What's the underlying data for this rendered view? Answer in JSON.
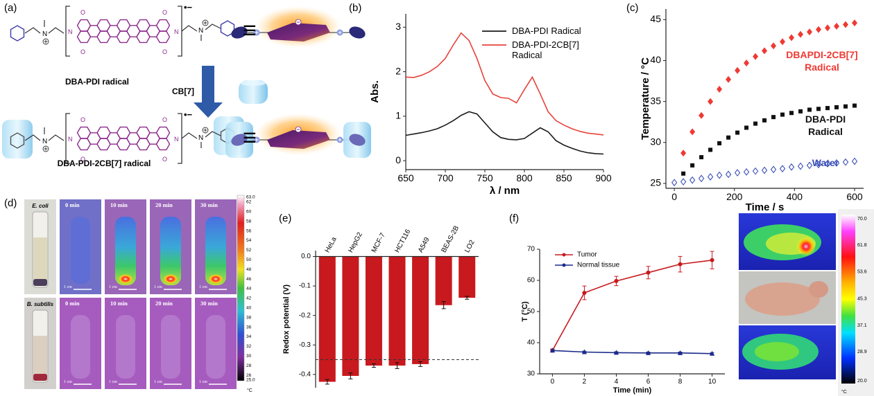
{
  "panel_labels": [
    "(a)",
    "(b)",
    "(c)",
    "(d)",
    "(e)",
    "(f)"
  ],
  "panel_a": {
    "radical_mark": "•−",
    "equivalence": "≡",
    "atom_O": "O",
    "atom_N": "N",
    "top_label": "DBA-PDI radical",
    "host_label": "CB[7]",
    "bottom_label": "DBA-PDI-2CB[7] radical"
  },
  "panel_d": {
    "rows": [
      {
        "strain": "E. coli",
        "times": [
          "0 min",
          "10 min",
          "20 min",
          "30 min"
        ]
      },
      {
        "strain": "B. subtilis",
        "times": [
          "0 min",
          "10 min",
          "20 min",
          "30 min"
        ]
      }
    ],
    "scale_bar": "1 cm",
    "colorbar": {
      "labels": [
        "63.0",
        "62",
        "60",
        "58",
        "56",
        "54",
        "52",
        "50",
        "48",
        "46",
        "44",
        "42",
        "40",
        "38",
        "36",
        "34",
        "32",
        "30",
        "28",
        "26",
        "25.0"
      ],
      "unit": "°C"
    }
  },
  "panel_f_images": {
    "colorbar": {
      "labels": [
        "70.0",
        "61.8",
        "53.6",
        "45.3",
        "37.1",
        "28.9",
        "20.0"
      ],
      "unit": "°C"
    }
  },
  "chart_data": [
    {
      "type": "line",
      "xlabel": "λ / nm",
      "ylabel": "Abs.",
      "x": [
        650,
        660,
        670,
        680,
        690,
        700,
        710,
        720,
        730,
        740,
        750,
        760,
        770,
        780,
        790,
        800,
        810,
        820,
        830,
        840,
        850,
        860,
        870,
        880,
        890,
        900
      ],
      "series": [
        {
          "name": "DBA-PDI Radical",
          "color": "#1a1a1a",
          "values": [
            0.57,
            0.6,
            0.63,
            0.67,
            0.72,
            0.8,
            0.9,
            1.02,
            1.1,
            1.05,
            0.85,
            0.65,
            0.52,
            0.48,
            0.47,
            0.5,
            0.62,
            0.74,
            0.65,
            0.45,
            0.35,
            0.28,
            0.22,
            0.18,
            0.16,
            0.15
          ]
        },
        {
          "name": "DBA-PDI-2CB[7] Radical",
          "color": "#e8413a",
          "values": [
            1.88,
            1.87,
            1.92,
            2.0,
            2.12,
            2.3,
            2.6,
            2.87,
            2.7,
            2.3,
            1.8,
            1.5,
            1.42,
            1.4,
            1.3,
            1.6,
            1.88,
            1.5,
            1.1,
            0.9,
            0.8,
            0.72,
            0.66,
            0.62,
            0.6,
            0.58
          ]
        }
      ],
      "xlim": [
        650,
        900
      ],
      "ylim": [
        -0.2,
        3.3
      ],
      "xticks": [
        650,
        700,
        750,
        800,
        850,
        900
      ],
      "yticks": [
        0,
        1,
        2,
        3
      ],
      "legend": "upper right"
    },
    {
      "type": "scatter",
      "xlabel": "Time / s",
      "ylabel": "Temperature / °C",
      "series": [
        {
          "name": "DBAPDI-2CB[7] Radical",
          "color": "#ee3a33",
          "marker": "diamond",
          "x": [
            30,
            60,
            90,
            120,
            150,
            180,
            210,
            240,
            270,
            300,
            330,
            360,
            390,
            420,
            450,
            480,
            510,
            540,
            570,
            600
          ],
          "values": [
            28.7,
            31.3,
            33.3,
            35,
            36.5,
            37.7,
            38.8,
            39.7,
            40.5,
            41.2,
            41.8,
            42.3,
            42.8,
            43.2,
            43.5,
            43.8,
            44,
            44.2,
            44.4,
            44.6
          ]
        },
        {
          "name": "DBA-PDI Radical",
          "color": "#111111",
          "marker": "square",
          "x": [
            30,
            60,
            90,
            120,
            150,
            180,
            210,
            240,
            270,
            300,
            330,
            360,
            390,
            420,
            450,
            480,
            510,
            540,
            570,
            600
          ],
          "values": [
            26.2,
            27.2,
            28.2,
            29.1,
            29.9,
            30.6,
            31.2,
            31.8,
            32.3,
            32.7,
            33.1,
            33.4,
            33.6,
            33.8,
            34,
            34.1,
            34.2,
            34.3,
            34.4,
            34.5
          ]
        },
        {
          "name": "Water",
          "color": "#3a4fb8",
          "marker": "open-diamond",
          "x": [
            0,
            30,
            60,
            90,
            120,
            150,
            180,
            210,
            240,
            270,
            300,
            330,
            360,
            390,
            420,
            450,
            480,
            510,
            540,
            570,
            600
          ],
          "values": [
            25.1,
            25.2,
            25.4,
            25.6,
            25.8,
            26,
            26.1,
            26.3,
            26.4,
            26.5,
            26.6,
            26.7,
            26.8,
            27,
            27.1,
            27.2,
            27.3,
            27.4,
            27.5,
            27.6,
            27.7
          ]
        }
      ],
      "xlim": [
        -28,
        630
      ],
      "ylim": [
        24.4,
        46.3
      ],
      "xticks": [
        0,
        200,
        400,
        600
      ],
      "yticks": [
        25,
        30,
        35,
        40,
        45
      ]
    },
    {
      "type": "bar",
      "ylabel": "Redox potential (V)",
      "categories": [
        "HeLa",
        "HepG2",
        "MCF-7",
        "HCT116",
        "A549",
        "BEAS-2B",
        "LO2"
      ],
      "values": [
        -0.425,
        -0.405,
        -0.37,
        -0.37,
        -0.365,
        -0.165,
        -0.14
      ],
      "errors": [
        0.008,
        0.01,
        0.006,
        0.01,
        0.008,
        0.012,
        0.005
      ],
      "color": "#c8191e",
      "ylim": [
        -0.445,
        0.02
      ],
      "yticks": [
        {
          "value": 0,
          "label": "0.0"
        },
        -0.1,
        -0.2,
        -0.3,
        -0.4
      ],
      "reference_line": -0.35
    },
    {
      "type": "line",
      "xlabel": "Time (min)",
      "ylabel": "T (°C)",
      "x": [
        0,
        2,
        4,
        6,
        8,
        10
      ],
      "series": [
        {
          "name": "Tumor",
          "color": "#c8191e",
          "marker": "circle",
          "values": [
            37.5,
            56,
            59.8,
            62.5,
            65.2,
            66.5
          ],
          "errors": [
            0.5,
            2.2,
            1.5,
            2,
            2.5,
            2.8
          ]
        },
        {
          "name": "Normal tissue",
          "color": "#1a2a8a",
          "marker": "triangle",
          "values": [
            37.5,
            37,
            36.8,
            36.7,
            36.7,
            36.5
          ],
          "errors": [
            0.3,
            0.3,
            0.3,
            0.3,
            0.3,
            0.3
          ]
        }
      ],
      "xlim": [
        -0.8,
        10.8
      ],
      "ylim": [
        30,
        70
      ],
      "xticks": [
        0,
        2,
        4,
        6,
        8,
        10
      ],
      "yticks": [
        30,
        40,
        50,
        60,
        70
      ],
      "legend": "upper left"
    }
  ]
}
